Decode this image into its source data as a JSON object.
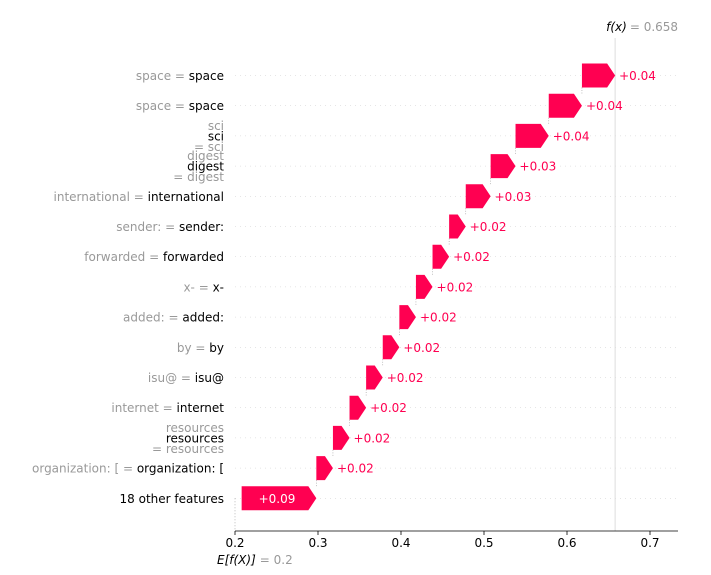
{
  "chart_data": {
    "type": "waterfall",
    "title": "",
    "xlabel": "",
    "ylabel": "",
    "xlim": [
      0.2,
      0.735
    ],
    "x_ticks": [
      "0.2",
      "0.3",
      "0.4",
      "0.5",
      "0.6",
      "0.7"
    ],
    "x_tick_values": [
      0.2,
      0.3,
      0.4,
      0.5,
      0.6,
      0.7
    ],
    "base_value": 0.2,
    "base_label": "E[f(X)]",
    "base_value_label": "= 0.2",
    "output_value": 0.658,
    "output_label": "f(x)",
    "output_value_label": "= 0.658",
    "positive_color": "#ff0051",
    "negative_color": "#008bfb",
    "features": [
      {
        "lines": [
          {
            "gray": "space ",
            "eq": " = ",
            "black": "space"
          }
        ],
        "contribution": 0.04,
        "label": "+0.04"
      },
      {
        "lines": [
          {
            "gray": "space ",
            "eq": " = ",
            "black": "space"
          }
        ],
        "contribution": 0.04,
        "label": "+0.04"
      },
      {
        "lines": [
          {
            "gray": "sci",
            "eq": "",
            "black": ""
          },
          {
            "gray": "",
            "eq": "",
            "black": "sci"
          },
          {
            "gray": "= sci",
            "eq": "",
            "black": ""
          }
        ],
        "contribution": 0.04,
        "label": "+0.04"
      },
      {
        "lines": [
          {
            "gray": "digest",
            "eq": "",
            "black": ""
          },
          {
            "gray": "",
            "eq": "",
            "black": "digest"
          },
          {
            "gray": "= digest",
            "eq": "",
            "black": ""
          }
        ],
        "contribution": 0.03,
        "label": "+0.03"
      },
      {
        "lines": [
          {
            "gray": "international ",
            "eq": " = ",
            "black": "international"
          }
        ],
        "contribution": 0.03,
        "label": "+0.03"
      },
      {
        "lines": [
          {
            "gray": "sender: ",
            "eq": " = ",
            "black": "sender:"
          }
        ],
        "contribution": 0.02,
        "label": "+0.02"
      },
      {
        "lines": [
          {
            "gray": "forwarded ",
            "eq": " = ",
            "black": "forwarded"
          }
        ],
        "contribution": 0.02,
        "label": "+0.02"
      },
      {
        "lines": [
          {
            "gray": "x-",
            "eq": " = ",
            "black": "x-"
          }
        ],
        "contribution": 0.02,
        "label": "+0.02"
      },
      {
        "lines": [
          {
            "gray": "added: ",
            "eq": " = ",
            "black": "added:"
          }
        ],
        "contribution": 0.02,
        "label": "+0.02"
      },
      {
        "lines": [
          {
            "gray": "by ",
            "eq": " = ",
            "black": "by"
          }
        ],
        "contribution": 0.02,
        "label": "+0.02"
      },
      {
        "lines": [
          {
            "gray": "isu@",
            "eq": " = ",
            "black": "isu@"
          }
        ],
        "contribution": 0.02,
        "label": "+0.02"
      },
      {
        "lines": [
          {
            "gray": "internet ",
            "eq": " = ",
            "black": "internet"
          }
        ],
        "contribution": 0.02,
        "label": "+0.02"
      },
      {
        "lines": [
          {
            "gray": "resources",
            "eq": "",
            "black": ""
          },
          {
            "gray": "",
            "eq": "",
            "black": "resources"
          },
          {
            "gray": "= resources",
            "eq": "",
            "black": ""
          }
        ],
        "contribution": 0.02,
        "label": "+0.02"
      },
      {
        "lines": [
          {
            "gray": "organization: [",
            "eq": " = ",
            "black": "organization: ["
          }
        ],
        "contribution": 0.02,
        "label": "+0.02"
      },
      {
        "lines": [
          {
            "gray": "",
            "eq": "",
            "black": "18 other features"
          }
        ],
        "contribution": 0.09,
        "label": "+0.09"
      }
    ]
  }
}
